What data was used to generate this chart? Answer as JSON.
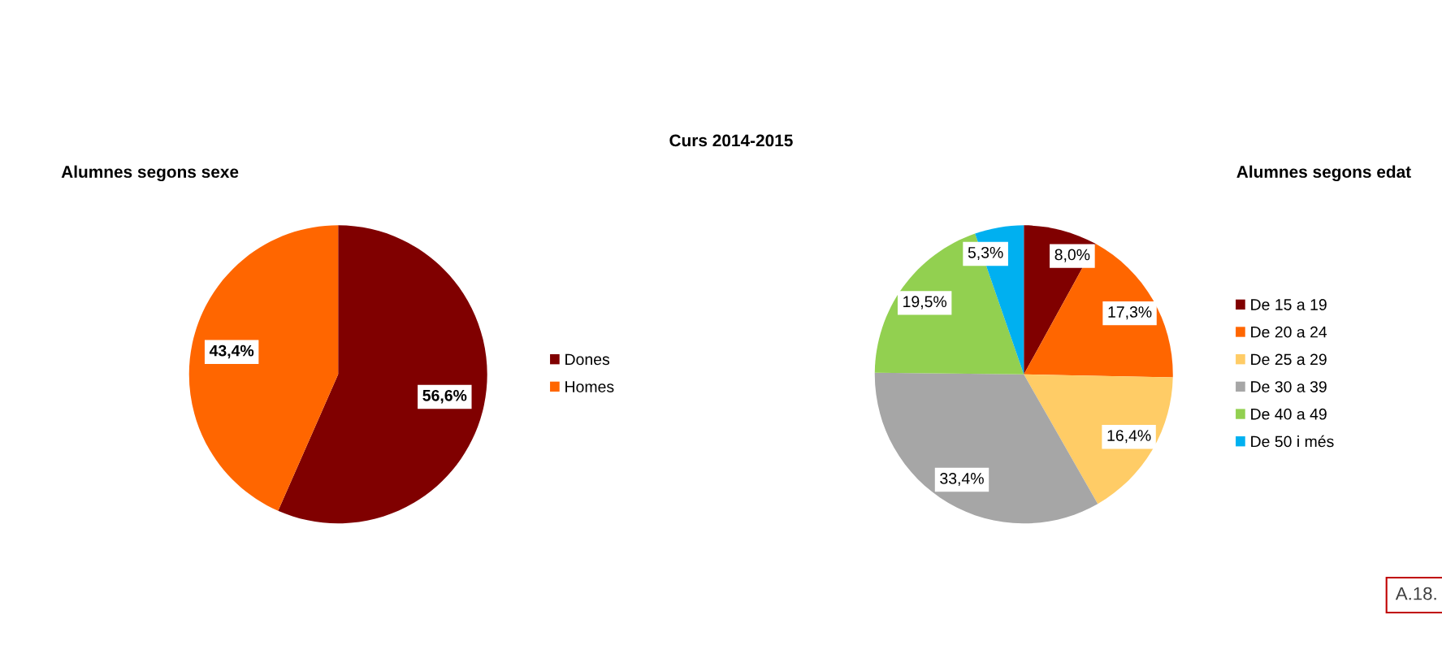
{
  "chart_data": [
    {
      "type": "pie",
      "title": "Alumnes segons sexe",
      "annotations": [
        "Curs 2014-2015"
      ],
      "categories": [
        "Dones",
        "Homes"
      ],
      "values": [
        56.6,
        43.4
      ],
      "colors": [
        "#800000",
        "#ff6600"
      ],
      "value_labels": [
        "56,6%",
        "43,4%"
      ],
      "legend": "right"
    },
    {
      "type": "pie",
      "title": "Alumnes segons edat",
      "annotations": [
        "A.18."
      ],
      "categories": [
        "De 15 a 19",
        "De 20 a 24",
        "De 25 a 29",
        "De 30 a 39",
        "De 40 a 49",
        "De 50 i més"
      ],
      "values": [
        8.0,
        17.3,
        16.4,
        33.4,
        19.5,
        5.3
      ],
      "colors": [
        "#800000",
        "#ff6600",
        "#ffcc66",
        "#a6a6a6",
        "#92d050",
        "#00b0f0"
      ],
      "value_labels": [
        "8,0%",
        "17,3%",
        "16,4%",
        "33,4%",
        "19,5%",
        "5,3%"
      ],
      "legend": "right"
    }
  ]
}
